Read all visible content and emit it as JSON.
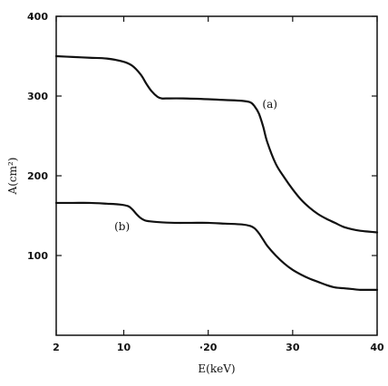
{
  "chart_data": {
    "type": "line",
    "title": "",
    "xlabel": "E(keV)",
    "ylabel": "A(cm²)",
    "xlim": [
      2,
      40
    ],
    "ylim": [
      0,
      400
    ],
    "xticks": [
      2,
      10,
      20,
      30,
      40
    ],
    "xtick_labels": [
      "2",
      "10",
      "·20",
      "30",
      "40"
    ],
    "yticks": [
      100,
      200,
      300,
      400
    ],
    "ytick_labels": [
      "100",
      "200",
      "300",
      "400"
    ],
    "grid": false,
    "legend": "none",
    "line_color": "#111111",
    "series": [
      {
        "name": "(a)",
        "label_at": {
          "x": 27.3,
          "y": 285
        },
        "x": [
          2,
          4,
          6,
          8,
          10,
          11,
          12,
          12.7,
          13.3,
          14,
          14.5,
          15,
          17,
          20,
          22,
          24,
          25,
          25.5,
          26,
          26.5,
          27,
          28,
          29,
          30,
          31,
          32,
          33,
          34,
          35,
          36,
          37,
          38,
          39,
          40
        ],
        "y": [
          350,
          349,
          348,
          347,
          343,
          338,
          327,
          315,
          306,
          299,
          297,
          297,
          297,
          296,
          295,
          294,
          292,
          287,
          278,
          262,
          242,
          215,
          198,
          183,
          170,
          160,
          152,
          146,
          141,
          136,
          133,
          131,
          130,
          129
        ]
      },
      {
        "name": "(b)",
        "label_at": {
          "x": 9.8,
          "y": 132
        },
        "x": [
          2,
          4,
          6,
          8,
          9.5,
          10.5,
          11,
          11.5,
          12,
          12.5,
          13,
          14,
          16,
          18,
          20,
          22,
          24,
          25,
          25.5,
          26,
          26.5,
          27,
          28,
          29,
          30,
          31,
          32,
          33,
          34,
          35,
          36,
          37,
          38,
          39,
          40
        ],
        "y": [
          166,
          166,
          166,
          165,
          164,
          162,
          158,
          152,
          147,
          144,
          143,
          142,
          141,
          141,
          141,
          140,
          139,
          137,
          134,
          128,
          120,
          112,
          100,
          90,
          82,
          76,
          71,
          67,
          63,
          60,
          59,
          58,
          57,
          57,
          57
        ]
      }
    ]
  }
}
